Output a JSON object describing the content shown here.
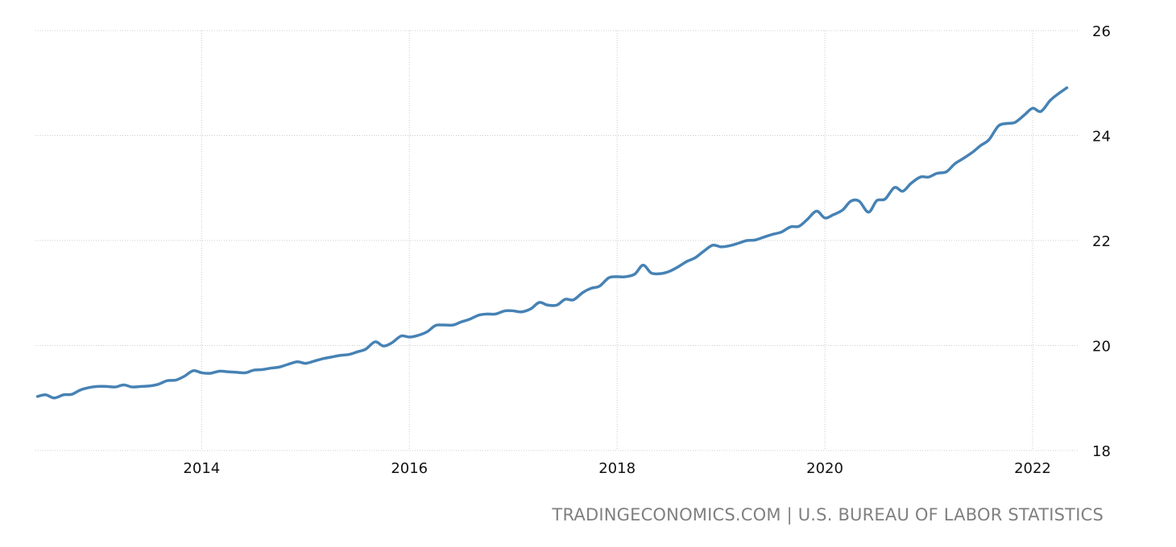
{
  "source": "TRADINGECONOMICS.COM | U.S. BUREAU OF LABOR STATISTICS",
  "colors": {
    "series": "#4682b4",
    "grid": "#cccccc",
    "tick_text": "#111111",
    "source_text": "#808080"
  },
  "chart_data": {
    "type": "line",
    "title": "",
    "xlabel": "",
    "ylabel": "",
    "xlim": [
      2012.4,
      2022.45
    ],
    "ylim": [
      18,
      26
    ],
    "x_ticks": [
      2014,
      2016,
      2018,
      2020,
      2022
    ],
    "x_tick_labels": [
      "2014",
      "2016",
      "2018",
      "2020",
      "2022"
    ],
    "y_ticks": [
      18,
      20,
      22,
      24,
      26
    ],
    "y_tick_labels": [
      "18",
      "20",
      "22",
      "24",
      "26"
    ],
    "y_axis_position": "right",
    "grid": true,
    "legend": "none",
    "series": [
      {
        "x": [
          2012.42,
          2012.5,
          2012.58,
          2012.67,
          2012.75,
          2012.83,
          2012.92,
          2013.0,
          2013.08,
          2013.17,
          2013.25,
          2013.33,
          2013.42,
          2013.5,
          2013.58,
          2013.67,
          2013.75,
          2013.83,
          2013.92,
          2014.0,
          2014.08,
          2014.17,
          2014.25,
          2014.33,
          2014.42,
          2014.5,
          2014.58,
          2014.67,
          2014.75,
          2014.83,
          2014.92,
          2015.0,
          2015.08,
          2015.17,
          2015.25,
          2015.33,
          2015.42,
          2015.5,
          2015.58,
          2015.67,
          2015.75,
          2015.83,
          2015.92,
          2016.0,
          2016.08,
          2016.17,
          2016.25,
          2016.33,
          2016.42,
          2016.5,
          2016.58,
          2016.67,
          2016.75,
          2016.83,
          2016.92,
          2017.0,
          2017.08,
          2017.17,
          2017.25,
          2017.33,
          2017.42,
          2017.5,
          2017.58,
          2017.67,
          2017.75,
          2017.83,
          2017.92,
          2018.0,
          2018.08,
          2018.17,
          2018.25,
          2018.33,
          2018.42,
          2018.5,
          2018.58,
          2018.67,
          2018.75,
          2018.83,
          2018.92,
          2019.0,
          2019.08,
          2019.17,
          2019.25,
          2019.33,
          2019.42,
          2019.5,
          2019.58,
          2019.67,
          2019.75,
          2019.83,
          2019.92,
          2020.0,
          2020.08,
          2020.17,
          2020.25,
          2020.33,
          2020.42,
          2020.5,
          2020.58,
          2020.67,
          2020.75,
          2020.83,
          2020.92,
          2021.0,
          2021.08,
          2021.17,
          2021.25,
          2021.33,
          2021.42,
          2021.5,
          2021.58,
          2021.67,
          2021.75,
          2021.83,
          2021.92,
          2022.0,
          2022.08,
          2022.17,
          2022.25,
          2022.33
        ],
        "values": [
          19.03,
          19.06,
          19.0,
          19.06,
          19.07,
          19.15,
          19.2,
          19.22,
          19.22,
          19.21,
          19.25,
          19.21,
          19.22,
          19.23,
          19.26,
          19.33,
          19.34,
          19.41,
          19.52,
          19.48,
          19.47,
          19.51,
          19.5,
          19.49,
          19.48,
          19.53,
          19.54,
          19.57,
          19.59,
          19.64,
          19.69,
          19.66,
          19.7,
          19.75,
          19.78,
          19.81,
          19.83,
          19.88,
          19.93,
          20.07,
          19.99,
          20.05,
          20.18,
          20.16,
          20.19,
          20.26,
          20.38,
          20.39,
          20.39,
          20.45,
          20.5,
          20.58,
          20.6,
          20.6,
          20.66,
          20.66,
          20.64,
          20.7,
          20.82,
          20.77,
          20.77,
          20.88,
          20.87,
          21.01,
          21.09,
          21.13,
          21.29,
          21.31,
          21.31,
          21.36,
          21.53,
          21.38,
          21.37,
          21.41,
          21.49,
          21.6,
          21.67,
          21.79,
          21.91,
          21.88,
          21.9,
          21.95,
          22.0,
          22.01,
          22.07,
          22.12,
          22.16,
          22.26,
          22.27,
          22.4,
          22.56,
          22.43,
          22.49,
          22.58,
          22.75,
          22.75,
          22.54,
          22.76,
          22.79,
          23.01,
          22.94,
          23.09,
          23.21,
          23.21,
          23.28,
          23.31,
          23.46,
          23.56,
          23.68,
          23.81,
          23.92,
          24.18,
          24.23,
          24.25,
          24.39,
          24.52,
          24.46,
          24.67,
          24.8,
          24.91
        ]
      }
    ]
  }
}
